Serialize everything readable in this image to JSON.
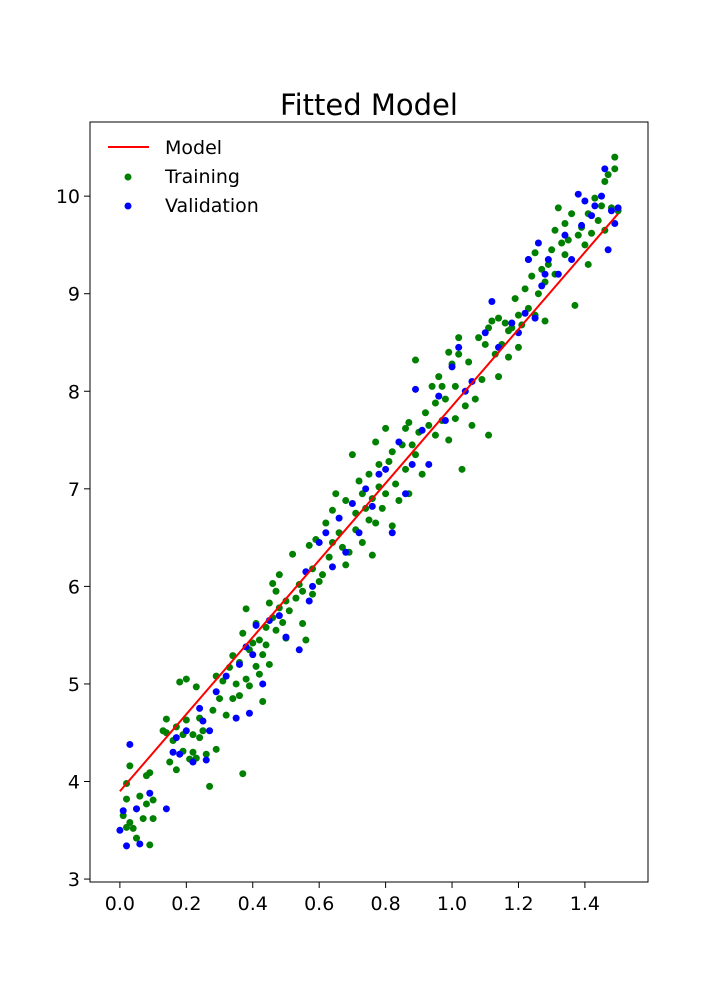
{
  "chart_data": {
    "type": "scatter",
    "title": "Fitted Model",
    "xlabel": "",
    "ylabel": "",
    "xlim": [
      -0.09,
      1.59
    ],
    "ylim": [
      2.97,
      10.76
    ],
    "xticks": [
      0.0,
      0.2,
      0.4,
      0.6,
      0.8,
      1.0,
      1.2,
      1.4
    ],
    "xtick_labels": [
      "0.0",
      "0.2",
      "0.4",
      "0.6",
      "0.8",
      "1.0",
      "1.2",
      "1.4"
    ],
    "yticks": [
      3,
      4,
      5,
      6,
      7,
      8,
      9,
      10
    ],
    "ytick_labels": [
      "3",
      "4",
      "5",
      "6",
      "7",
      "8",
      "9",
      "10"
    ],
    "grid": false,
    "legend_position": "top-left",
    "model": {
      "name": "Model",
      "color": "#ff0000",
      "x": [
        0.0,
        1.5
      ],
      "y": [
        3.9,
        9.82
      ]
    },
    "series": [
      {
        "name": "Training",
        "color": "#008000",
        "points": [
          [
            0.01,
            3.65
          ],
          [
            0.02,
            3.53
          ],
          [
            0.02,
            3.82
          ],
          [
            0.02,
            3.98
          ],
          [
            0.03,
            4.16
          ],
          [
            0.03,
            3.58
          ],
          [
            0.04,
            3.52
          ],
          [
            0.05,
            3.72
          ],
          [
            0.05,
            3.42
          ],
          [
            0.06,
            3.85
          ],
          [
            0.07,
            3.62
          ],
          [
            0.08,
            4.06
          ],
          [
            0.08,
            3.77
          ],
          [
            0.09,
            4.09
          ],
          [
            0.09,
            3.35
          ],
          [
            0.1,
            3.62
          ],
          [
            0.1,
            3.81
          ],
          [
            0.13,
            4.52
          ],
          [
            0.14,
            4.64
          ],
          [
            0.14,
            4.5
          ],
          [
            0.15,
            4.2
          ],
          [
            0.16,
            4.42
          ],
          [
            0.17,
            4.12
          ],
          [
            0.17,
            4.56
          ],
          [
            0.18,
            5.02
          ],
          [
            0.19,
            4.31
          ],
          [
            0.19,
            4.48
          ],
          [
            0.2,
            5.05
          ],
          [
            0.2,
            4.63
          ],
          [
            0.21,
            4.23
          ],
          [
            0.22,
            4.3
          ],
          [
            0.22,
            4.48
          ],
          [
            0.23,
            4.97
          ],
          [
            0.23,
            4.24
          ],
          [
            0.24,
            4.65
          ],
          [
            0.24,
            4.45
          ],
          [
            0.25,
            4.52
          ],
          [
            0.26,
            4.28
          ],
          [
            0.27,
            3.95
          ],
          [
            0.28,
            4.73
          ],
          [
            0.29,
            5.08
          ],
          [
            0.29,
            4.33
          ],
          [
            0.3,
            4.85
          ],
          [
            0.31,
            5.03
          ],
          [
            0.32,
            4.68
          ],
          [
            0.33,
            5.17
          ],
          [
            0.34,
            5.29
          ],
          [
            0.34,
            4.85
          ],
          [
            0.35,
            5.0
          ],
          [
            0.36,
            5.22
          ],
          [
            0.36,
            4.88
          ],
          [
            0.37,
            5.52
          ],
          [
            0.37,
            4.08
          ],
          [
            0.38,
            5.05
          ],
          [
            0.38,
            5.77
          ],
          [
            0.39,
            4.98
          ],
          [
            0.39,
            5.35
          ],
          [
            0.4,
            5.42
          ],
          [
            0.41,
            5.18
          ],
          [
            0.41,
            5.62
          ],
          [
            0.42,
            5.1
          ],
          [
            0.42,
            5.45
          ],
          [
            0.43,
            5.3
          ],
          [
            0.43,
            4.82
          ],
          [
            0.44,
            5.58
          ],
          [
            0.44,
            5.4
          ],
          [
            0.45,
            5.2
          ],
          [
            0.45,
            5.83
          ],
          [
            0.46,
            6.03
          ],
          [
            0.46,
            5.68
          ],
          [
            0.47,
            5.95
          ],
          [
            0.47,
            5.55
          ],
          [
            0.48,
            6.12
          ],
          [
            0.48,
            5.78
          ],
          [
            0.49,
            5.63
          ],
          [
            0.5,
            5.85
          ],
          [
            0.5,
            5.47
          ],
          [
            0.51,
            5.75
          ],
          [
            0.52,
            6.33
          ],
          [
            0.53,
            5.88
          ],
          [
            0.54,
            6.02
          ],
          [
            0.55,
            5.62
          ],
          [
            0.55,
            5.95
          ],
          [
            0.56,
            5.45
          ],
          [
            0.57,
            6.42
          ],
          [
            0.58,
            6.18
          ],
          [
            0.58,
            5.92
          ],
          [
            0.59,
            6.48
          ],
          [
            0.6,
            6.05
          ],
          [
            0.61,
            6.12
          ],
          [
            0.62,
            6.65
          ],
          [
            0.63,
            6.3
          ],
          [
            0.64,
            6.78
          ],
          [
            0.64,
            6.45
          ],
          [
            0.65,
            6.95
          ],
          [
            0.66,
            6.55
          ],
          [
            0.67,
            6.4
          ],
          [
            0.68,
            6.88
          ],
          [
            0.68,
            6.22
          ],
          [
            0.69,
            6.35
          ],
          [
            0.7,
            7.35
          ],
          [
            0.71,
            6.75
          ],
          [
            0.71,
            6.58
          ],
          [
            0.72,
            7.08
          ],
          [
            0.73,
            6.95
          ],
          [
            0.73,
            6.45
          ],
          [
            0.74,
            6.8
          ],
          [
            0.75,
            6.68
          ],
          [
            0.75,
            7.15
          ],
          [
            0.76,
            6.9
          ],
          [
            0.76,
            6.32
          ],
          [
            0.77,
            7.48
          ],
          [
            0.77,
            6.65
          ],
          [
            0.78,
            7.02
          ],
          [
            0.78,
            7.25
          ],
          [
            0.79,
            6.8
          ],
          [
            0.8,
            6.95
          ],
          [
            0.8,
            7.62
          ],
          [
            0.81,
            7.28
          ],
          [
            0.82,
            6.62
          ],
          [
            0.82,
            7.38
          ],
          [
            0.83,
            7.05
          ],
          [
            0.84,
            6.88
          ],
          [
            0.85,
            7.45
          ],
          [
            0.86,
            7.62
          ],
          [
            0.86,
            7.2
          ],
          [
            0.87,
            7.68
          ],
          [
            0.87,
            6.95
          ],
          [
            0.88,
            7.45
          ],
          [
            0.89,
            7.35
          ],
          [
            0.89,
            8.32
          ],
          [
            0.9,
            7.58
          ],
          [
            0.91,
            7.15
          ],
          [
            0.92,
            7.78
          ],
          [
            0.93,
            7.65
          ],
          [
            0.94,
            8.05
          ],
          [
            0.95,
            7.88
          ],
          [
            0.95,
            7.55
          ],
          [
            0.96,
            8.15
          ],
          [
            0.97,
            8.05
          ],
          [
            0.97,
            7.7
          ],
          [
            0.98,
            7.92
          ],
          [
            0.99,
            8.4
          ],
          [
            0.99,
            7.5
          ],
          [
            1.0,
            8.28
          ],
          [
            1.01,
            8.05
          ],
          [
            1.01,
            7.72
          ],
          [
            1.02,
            8.55
          ],
          [
            1.02,
            8.38
          ],
          [
            1.03,
            7.2
          ],
          [
            1.04,
            7.85
          ],
          [
            1.05,
            8.3
          ],
          [
            1.06,
            7.65
          ],
          [
            1.07,
            7.92
          ],
          [
            1.08,
            8.55
          ],
          [
            1.09,
            8.12
          ],
          [
            1.1,
            8.48
          ],
          [
            1.11,
            8.65
          ],
          [
            1.11,
            7.55
          ],
          [
            1.12,
            8.72
          ],
          [
            1.13,
            8.38
          ],
          [
            1.14,
            8.75
          ],
          [
            1.14,
            8.15
          ],
          [
            1.15,
            8.48
          ],
          [
            1.16,
            8.7
          ],
          [
            1.17,
            8.35
          ],
          [
            1.17,
            8.62
          ],
          [
            1.18,
            8.65
          ],
          [
            1.19,
            8.95
          ],
          [
            1.2,
            8.78
          ],
          [
            1.2,
            8.45
          ],
          [
            1.21,
            8.68
          ],
          [
            1.22,
            9.05
          ],
          [
            1.23,
            9.35
          ],
          [
            1.23,
            8.85
          ],
          [
            1.24,
            9.18
          ],
          [
            1.25,
            8.78
          ],
          [
            1.25,
            9.42
          ],
          [
            1.26,
            9.0
          ],
          [
            1.27,
            9.25
          ],
          [
            1.28,
            9.12
          ],
          [
            1.28,
            8.72
          ],
          [
            1.29,
            9.3
          ],
          [
            1.3,
            9.45
          ],
          [
            1.31,
            9.65
          ],
          [
            1.31,
            9.2
          ],
          [
            1.32,
            9.88
          ],
          [
            1.33,
            9.52
          ],
          [
            1.34,
            9.4
          ],
          [
            1.34,
            9.72
          ],
          [
            1.35,
            9.55
          ],
          [
            1.36,
            9.82
          ],
          [
            1.37,
            8.88
          ],
          [
            1.38,
            9.6
          ],
          [
            1.39,
            9.68
          ],
          [
            1.4,
            9.5
          ],
          [
            1.41,
            9.3
          ],
          [
            1.41,
            9.82
          ],
          [
            1.42,
            9.62
          ],
          [
            1.43,
            9.98
          ],
          [
            1.44,
            9.75
          ],
          [
            1.45,
            9.9
          ],
          [
            1.46,
            10.15
          ],
          [
            1.46,
            9.65
          ],
          [
            1.47,
            10.22
          ],
          [
            1.48,
            9.88
          ],
          [
            1.49,
            10.28
          ],
          [
            1.49,
            10.4
          ],
          [
            1.5,
            9.85
          ]
        ]
      },
      {
        "name": "Validation",
        "color": "#0000ff",
        "points": [
          [
            0.0,
            3.5
          ],
          [
            0.01,
            3.7
          ],
          [
            0.02,
            3.34
          ],
          [
            0.03,
            4.38
          ],
          [
            0.05,
            3.72
          ],
          [
            0.06,
            3.36
          ],
          [
            0.09,
            3.88
          ],
          [
            0.14,
            3.72
          ],
          [
            0.16,
            4.3
          ],
          [
            0.17,
            4.45
          ],
          [
            0.18,
            4.28
          ],
          [
            0.2,
            4.52
          ],
          [
            0.22,
            4.2
          ],
          [
            0.24,
            4.75
          ],
          [
            0.25,
            4.62
          ],
          [
            0.26,
            4.22
          ],
          [
            0.27,
            4.52
          ],
          [
            0.29,
            4.92
          ],
          [
            0.32,
            5.08
          ],
          [
            0.35,
            4.65
          ],
          [
            0.36,
            5.2
          ],
          [
            0.38,
            5.38
          ],
          [
            0.39,
            4.7
          ],
          [
            0.4,
            5.3
          ],
          [
            0.41,
            5.6
          ],
          [
            0.43,
            5.0
          ],
          [
            0.45,
            5.65
          ],
          [
            0.48,
            5.7
          ],
          [
            0.5,
            5.48
          ],
          [
            0.54,
            5.35
          ],
          [
            0.56,
            6.15
          ],
          [
            0.57,
            5.85
          ],
          [
            0.58,
            6.0
          ],
          [
            0.6,
            6.45
          ],
          [
            0.62,
            6.55
          ],
          [
            0.64,
            6.2
          ],
          [
            0.66,
            6.7
          ],
          [
            0.68,
            6.35
          ],
          [
            0.7,
            6.85
          ],
          [
            0.72,
            6.55
          ],
          [
            0.74,
            7.0
          ],
          [
            0.76,
            6.82
          ],
          [
            0.78,
            7.15
          ],
          [
            0.8,
            7.2
          ],
          [
            0.82,
            6.55
          ],
          [
            0.84,
            7.48
          ],
          [
            0.86,
            6.95
          ],
          [
            0.88,
            7.25
          ],
          [
            0.89,
            8.02
          ],
          [
            0.91,
            7.6
          ],
          [
            0.93,
            7.25
          ],
          [
            0.96,
            7.95
          ],
          [
            0.98,
            7.7
          ],
          [
            1.0,
            8.25
          ],
          [
            1.02,
            8.45
          ],
          [
            1.04,
            8.0
          ],
          [
            1.06,
            8.1
          ],
          [
            1.1,
            8.6
          ],
          [
            1.12,
            8.92
          ],
          [
            1.14,
            8.45
          ],
          [
            1.18,
            8.7
          ],
          [
            1.2,
            8.6
          ],
          [
            1.22,
            8.8
          ],
          [
            1.23,
            9.35
          ],
          [
            1.25,
            8.75
          ],
          [
            1.26,
            9.52
          ],
          [
            1.27,
            9.08
          ],
          [
            1.28,
            9.2
          ],
          [
            1.29,
            9.35
          ],
          [
            1.32,
            9.2
          ],
          [
            1.34,
            9.6
          ],
          [
            1.36,
            9.35
          ],
          [
            1.38,
            10.02
          ],
          [
            1.39,
            9.7
          ],
          [
            1.4,
            9.95
          ],
          [
            1.42,
            9.8
          ],
          [
            1.43,
            9.9
          ],
          [
            1.45,
            10.0
          ],
          [
            1.46,
            10.28
          ],
          [
            1.47,
            9.45
          ],
          [
            1.48,
            9.85
          ],
          [
            1.49,
            9.72
          ],
          [
            1.5,
            9.88
          ]
        ]
      }
    ]
  }
}
